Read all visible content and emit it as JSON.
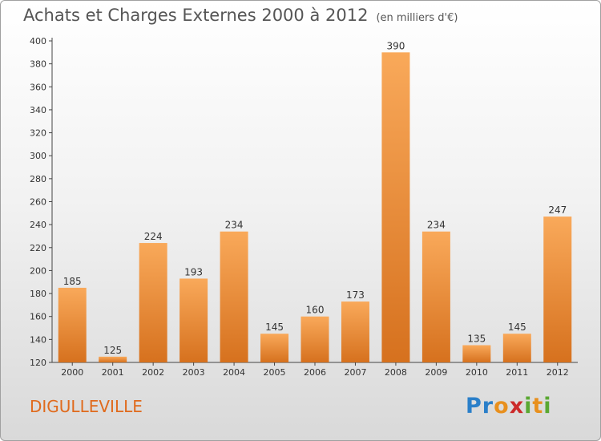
{
  "title": "Achats et Charges Externes 2000 à 2012",
  "unit": "(en milliers d'€)",
  "commune": "DIGULLEVILLE",
  "logo": {
    "letters": [
      "P",
      "r",
      "o",
      "x",
      "i",
      "t",
      "i"
    ],
    "colors": [
      "#2a7fc9",
      "#2a7fc9",
      "#e8901e",
      "#cc2a2a",
      "#5aa832",
      "#e8901e",
      "#5aa832"
    ]
  },
  "colors": {
    "bar_light": "#f9a95a",
    "bar_dark": "#d6711e",
    "title": "#555555",
    "commune": "#e06a1c"
  },
  "chart_data": {
    "type": "bar",
    "categories": [
      "2000",
      "2001",
      "2002",
      "2003",
      "2004",
      "2005",
      "2006",
      "2007",
      "2008",
      "2009",
      "2010",
      "2011",
      "2012"
    ],
    "values": [
      185,
      125,
      224,
      193,
      234,
      145,
      160,
      173,
      390,
      234,
      135,
      145,
      247
    ],
    "ylim": [
      120,
      400
    ],
    "yticks": [
      120,
      140,
      160,
      180,
      200,
      220,
      240,
      260,
      280,
      300,
      320,
      340,
      360,
      380,
      400
    ],
    "grid": false
  }
}
